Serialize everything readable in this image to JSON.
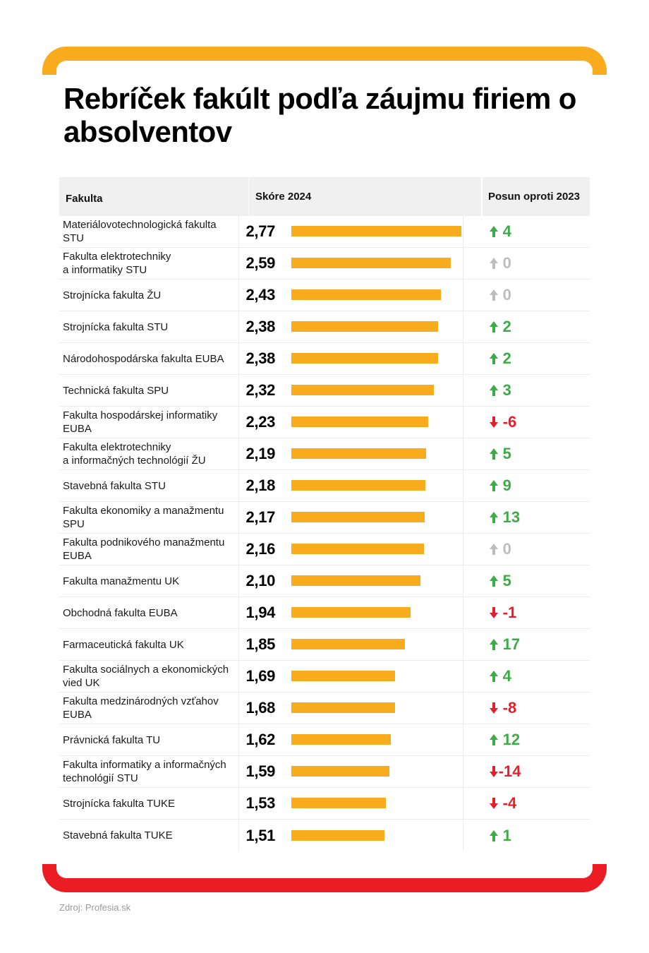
{
  "title": "Rebríček fakúlt podľa záujmu firiem o absolventov",
  "colors": {
    "bar": "#f9ab1e",
    "frame_top": "#f9ab1e",
    "frame_bottom": "#ec1c24",
    "up": "#3faa48",
    "down": "#e2202b",
    "zero": "#bdbdbd"
  },
  "source": "Zdroj: Profesia.sk",
  "chart_data": {
    "type": "table",
    "title": "Rebríček fakúlt podľa záujmu firiem o absolventov",
    "columns": [
      "Fakulta",
      "Skóre 2024",
      "Posun oproti 2023"
    ],
    "score_axis": [
      0,
      2.77
    ],
    "rows": [
      {
        "faculty": "Materiálovotechnologická fakulta STU",
        "score": 2.77,
        "score_label": "2,77",
        "change": 4,
        "change_label": "4",
        "trend": "up"
      },
      {
        "faculty": "Fakulta elektrotechniky a informatiky STU",
        "score": 2.59,
        "score_label": "2,59",
        "change": 0,
        "change_label": "0",
        "trend": "zero"
      },
      {
        "faculty": "Strojnícka fakulta ŽU",
        "score": 2.43,
        "score_label": "2,43",
        "change": 0,
        "change_label": "0",
        "trend": "zero"
      },
      {
        "faculty": "Strojnícka fakulta STU",
        "score": 2.38,
        "score_label": "2,38",
        "change": 2,
        "change_label": "2",
        "trend": "up"
      },
      {
        "faculty": "Národohospodárska fakulta EUBA",
        "score": 2.38,
        "score_label": "2,38",
        "change": 2,
        "change_label": "2",
        "trend": "up"
      },
      {
        "faculty": "Technická fakulta SPU",
        "score": 2.32,
        "score_label": "2,32",
        "change": 3,
        "change_label": "3",
        "trend": "up"
      },
      {
        "faculty": "Fakulta hospodárskej informatiky EUBA",
        "score": 2.23,
        "score_label": "2,23",
        "change": -6,
        "change_label": "-6",
        "trend": "down"
      },
      {
        "faculty": "Fakulta elektrotechniky a informačných technológií ŽU",
        "score": 2.19,
        "score_label": "2,19",
        "change": 5,
        "change_label": "5",
        "trend": "up"
      },
      {
        "faculty": "Stavebná fakulta STU",
        "score": 2.18,
        "score_label": "2,18",
        "change": 9,
        "change_label": "9",
        "trend": "up"
      },
      {
        "faculty": "Fakulta ekonomiky a manažmentu SPU",
        "score": 2.17,
        "score_label": "2,17",
        "change": 13,
        "change_label": "13",
        "trend": "up"
      },
      {
        "faculty": "Fakulta podnikového manažmentu EUBA",
        "score": 2.16,
        "score_label": "2,16",
        "change": 0,
        "change_label": "0",
        "trend": "zero"
      },
      {
        "faculty": "Fakulta manažmentu UK",
        "score": 2.1,
        "score_label": "2,10",
        "change": 5,
        "change_label": "5",
        "trend": "up"
      },
      {
        "faculty": "Obchodná fakulta EUBA",
        "score": 1.94,
        "score_label": "1,94",
        "change": -1,
        "change_label": "-1",
        "trend": "down"
      },
      {
        "faculty": "Farmaceutická fakulta UK",
        "score": 1.85,
        "score_label": "1,85",
        "change": 17,
        "change_label": "17",
        "trend": "up"
      },
      {
        "faculty": "Fakulta sociálnych a ekonomických vied UK",
        "score": 1.69,
        "score_label": "1,69",
        "change": 4,
        "change_label": "4",
        "trend": "up"
      },
      {
        "faculty": "Fakulta medzinárodných vzťahov EUBA",
        "score": 1.68,
        "score_label": "1,68",
        "change": -8,
        "change_label": "-8",
        "trend": "down"
      },
      {
        "faculty": "Právnická fakulta TU",
        "score": 1.62,
        "score_label": "1,62",
        "change": 12,
        "change_label": "12",
        "trend": "up"
      },
      {
        "faculty": "Fakulta informatiky a informačných technológií STU",
        "score": 1.59,
        "score_label": "1,59",
        "change": -14,
        "change_label": "-14",
        "trend": "down"
      },
      {
        "faculty": "Strojnícka fakulta TUKE",
        "score": 1.53,
        "score_label": "1,53",
        "change": -4,
        "change_label": "-4",
        "trend": "down"
      },
      {
        "faculty": "Stavebná fakulta TUKE",
        "score": 1.51,
        "score_label": "1,51",
        "change": 1,
        "change_label": "1",
        "trend": "up"
      }
    ]
  },
  "row_breaks": [
    [
      "Materiálovotechnologická fakulta",
      "STU"
    ],
    [
      "Fakulta elektrotechniky",
      "a informatiky STU"
    ],
    [
      "Strojnícka fakulta ŽU"
    ],
    [
      "Strojnícka fakulta STU"
    ],
    [
      "Národohospodárska fakulta EUBA"
    ],
    [
      "Technická fakulta SPU"
    ],
    [
      "Fakulta hospodárskej informatiky",
      "EUBA"
    ],
    [
      "Fakulta elektrotechniky",
      "a informačných technológií ŽU"
    ],
    [
      "Stavebná fakulta STU"
    ],
    [
      "Fakulta ekonomiky a manažmentu",
      "SPU"
    ],
    [
      "Fakulta podnikového manažmentu",
      "EUBA"
    ],
    [
      "Fakulta manažmentu UK"
    ],
    [
      "Obchodná fakulta EUBA"
    ],
    [
      "Farmaceutická fakulta UK"
    ],
    [
      "Fakulta sociálnych a ekonomických",
      "vied UK"
    ],
    [
      "Fakulta medzinárodných vzťahov",
      "EUBA"
    ],
    [
      "Právnická fakulta TU"
    ],
    [
      "Fakulta informatiky a informačných",
      "technológií STU"
    ],
    [
      "Strojnícka fakulta TUKE"
    ],
    [
      "Stavebná fakulta TUKE"
    ]
  ]
}
